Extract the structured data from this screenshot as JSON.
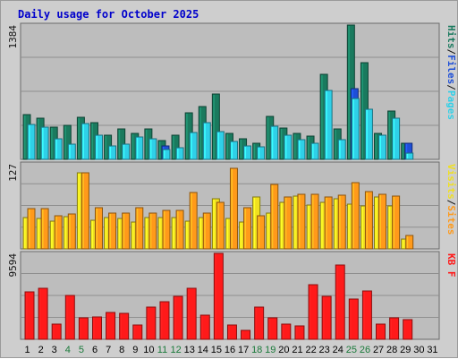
{
  "title": "Daily usage for October 2025",
  "chart_data": {
    "type": "bar",
    "categories": [
      "1",
      "2",
      "3",
      "4",
      "5",
      "6",
      "7",
      "8",
      "9",
      "10",
      "11",
      "12",
      "13",
      "14",
      "15",
      "16",
      "17",
      "18",
      "19",
      "20",
      "21",
      "22",
      "23",
      "24",
      "25",
      "26",
      "27",
      "28",
      "29",
      "30",
      "31"
    ],
    "weekend_days": [
      "4",
      "5",
      "11",
      "12",
      "18",
      "19",
      "25",
      "26"
    ],
    "colors": {
      "hits": "#1a7a5e",
      "files": "#1e4fd8",
      "pages": "#2fd0e8",
      "visits": "#f0e020",
      "sites": "#ff9a1a",
      "kbf": "#ff1a1a",
      "weekend_tick": "#1a7a3a",
      "weekday_tick": "#000000",
      "title": "#0000cc"
    },
    "panels": [
      {
        "id": "usage",
        "y_label_max": "1384",
        "ylim": [
          0,
          1384
        ],
        "right_label": [
          {
            "text": "Pages",
            "color": "#2fd0e8"
          },
          {
            "text": "/",
            "color": "#111111"
          },
          {
            "text": "Files",
            "color": "#1e4fd8"
          },
          {
            "text": "/",
            "color": "#111111"
          },
          {
            "text": "Hits",
            "color": "#1a7a5e"
          }
        ],
        "series": [
          {
            "name": "Hits",
            "key": "hits",
            "values": [
              460,
              420,
              330,
              350,
              430,
              380,
              250,
              310,
              270,
              310,
              190,
              250,
              480,
              540,
              670,
              270,
              210,
              170,
              440,
              320,
              270,
              240,
              880,
              310,
              1380,
              1000,
              270,
              500,
              170,
              0,
              0
            ]
          },
          {
            "name": "Files",
            "key": "files",
            "values": [
              0,
              0,
              0,
              0,
              0,
              0,
              0,
              0,
              0,
              0,
              140,
              0,
              0,
              0,
              0,
              0,
              0,
              0,
              0,
              0,
              0,
              0,
              0,
              0,
              730,
              0,
              0,
              0,
              170,
              0,
              0
            ]
          },
          {
            "name": "Pages",
            "key": "pages",
            "values": [
              360,
              330,
              210,
              160,
              370,
              250,
              140,
              160,
              230,
              210,
              100,
              120,
              280,
              380,
              290,
              180,
              140,
              130,
              340,
              250,
              200,
              170,
              710,
              200,
              630,
              520,
              250,
              420,
              60,
              0,
              0
            ]
          }
        ]
      },
      {
        "id": "visits",
        "y_label_max": "127",
        "ylim": [
          0,
          127
        ],
        "right_label": [
          {
            "text": "Sites",
            "color": "#ff9a1a"
          },
          {
            "text": "/",
            "color": "#111111"
          },
          {
            "text": "Visits",
            "color": "#f0e020"
          }
        ],
        "series": [
          {
            "name": "Visits",
            "key": "visits",
            "values": [
              47,
              45,
              42,
              48,
              113,
              43,
              47,
              45,
              40,
              47,
              47,
              47,
              41,
              47,
              75,
              46,
              40,
              78,
              53,
              69,
              79,
              66,
              70,
              75,
              67,
              64,
              77,
              64,
              15,
              0,
              0
            ]
          },
          {
            "name": "Sites",
            "key": "sites",
            "values": [
              60,
              60,
              50,
              52,
              114,
              62,
              54,
              54,
              62,
              53,
              58,
              58,
              84,
              53,
              70,
              120,
              61,
              50,
              96,
              78,
              81,
              82,
              77,
              80,
              99,
              85,
              81,
              79,
              20,
              0,
              0
            ]
          }
        ]
      },
      {
        "id": "kbf",
        "y_label_max": "9594",
        "ylim": [
          0,
          9594
        ],
        "right_label": [
          {
            "text": "KB F",
            "color": "#ff1a1a"
          }
        ],
        "series": [
          {
            "name": "KB F",
            "key": "kbf",
            "values": [
              5300,
              5700,
              1700,
              4900,
              2400,
              2500,
              3000,
              2900,
              1600,
              3600,
              4200,
              4800,
              5700,
              2700,
              9594,
              1600,
              1000,
              3600,
              2400,
              1700,
              1500,
              6100,
              4800,
              8300,
              4500,
              5400,
              1700,
              2400,
              2200,
              0,
              0
            ]
          }
        ]
      }
    ]
  }
}
